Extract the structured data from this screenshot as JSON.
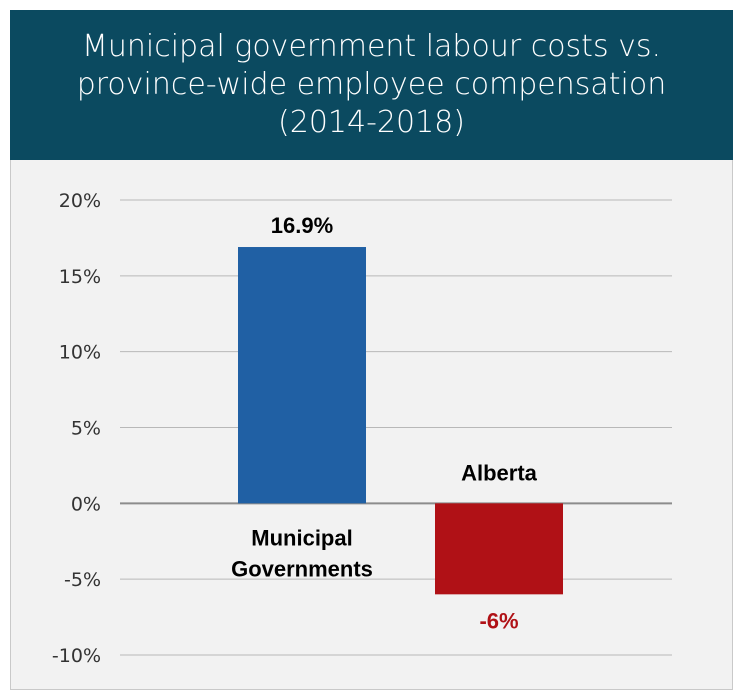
{
  "title": "Municipal government labour costs vs. province-wide employee compensation (2014-2018)",
  "colors": {
    "header_background": "#0b4a60",
    "plot_background": "#f2f2f2",
    "municipal_bar": "#2060a4",
    "alberta_bar": "#b01116",
    "negative_label": "#b01116"
  },
  "chart_data": {
    "type": "bar",
    "title": "Municipal government labour costs vs. province-wide employee compensation (2014-2018)",
    "xlabel": "",
    "ylabel": "",
    "categories": [
      "Municipal Governments",
      "Alberta"
    ],
    "values": [
      16.9,
      -6
    ],
    "data_labels": [
      "16.9%",
      "-6%"
    ],
    "ylim": [
      -10,
      20
    ],
    "yticks": [
      20,
      15,
      10,
      5,
      0,
      -5,
      -10
    ],
    "ytick_labels": [
      "20%",
      "15%",
      "10%",
      "5%",
      "0%",
      "-5%",
      "-10%"
    ],
    "grid": true,
    "legend": "none"
  }
}
